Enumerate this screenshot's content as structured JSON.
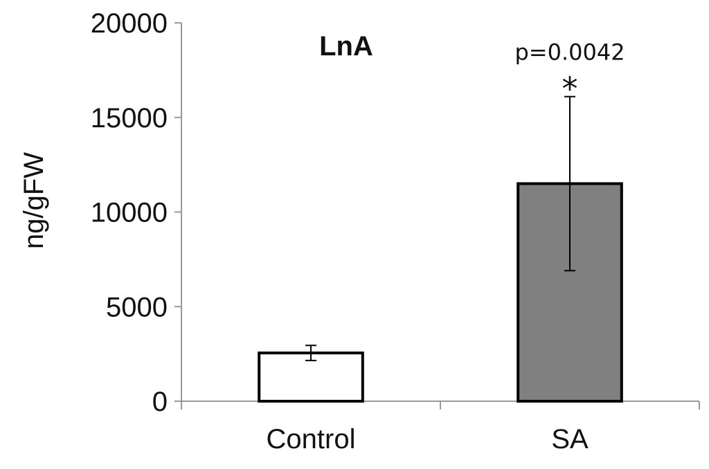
{
  "chart_data": {
    "type": "bar",
    "title": "LnA",
    "ylabel": "ng/gFW",
    "xlabel": "",
    "ylim": [
      0,
      20000
    ],
    "yticks": [
      0,
      5000,
      10000,
      15000,
      20000
    ],
    "ytick_labels": [
      "0",
      "5000",
      "10000",
      "15000",
      "20000"
    ],
    "categories": [
      "Control",
      "SA"
    ],
    "values": [
      2550,
      11500
    ],
    "errors": [
      400,
      4600
    ],
    "bar_colors": [
      "#ffffff",
      "#808080"
    ],
    "edge_color": "#000000",
    "grid": false,
    "annotations": [
      {
        "category": "SA",
        "text": "p=0.0042"
      },
      {
        "category": "SA",
        "text": "*"
      }
    ]
  }
}
